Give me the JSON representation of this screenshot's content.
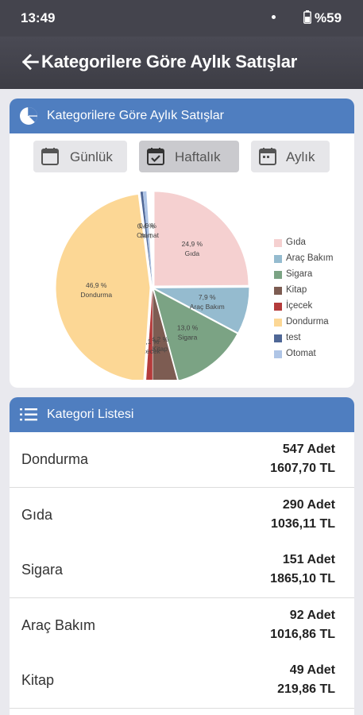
{
  "status": {
    "time": "13:49",
    "battery": "%59"
  },
  "appbar": {
    "title": "Kategorilere Göre Aylık Satışlar"
  },
  "chart_card": {
    "title": "Kategorilere Göre Aylık Satışlar"
  },
  "period_tabs": [
    {
      "label": "Günlük",
      "active": false
    },
    {
      "label": "Haftalık",
      "active": true
    },
    {
      "label": "Aylık",
      "active": false
    }
  ],
  "chart_data": {
    "type": "pie",
    "slices": [
      {
        "name": "Gıda",
        "percent": 24.9,
        "label": "24,9 %",
        "color": "#f5d0d0"
      },
      {
        "name": "Araç Bakım",
        "percent": 7.9,
        "label": "7,9 %",
        "color": "#95bbcf"
      },
      {
        "name": "Sigara",
        "percent": 13.0,
        "label": "13,0 %",
        "color": "#7ba384"
      },
      {
        "name": "Kitap",
        "percent": 4.2,
        "label": "4,2 %",
        "color": "#7d5c52"
      },
      {
        "name": "İçecek",
        "percent": 1.1,
        "label": "1,1 %",
        "color": "#b43b3b"
      },
      {
        "name": "Dondurma",
        "percent": 46.9,
        "label": "46,9 %",
        "color": "#fcd795"
      },
      {
        "name": "test",
        "percent": 0.4,
        "label": "0,4 %",
        "color": "#4f6796"
      },
      {
        "name": "Otomat",
        "percent": 0.6,
        "label": "0,6 %",
        "color": "#afc5e6"
      }
    ],
    "legend_position": "right"
  },
  "list_card": {
    "title": "Kategori Listesi"
  },
  "categories": [
    {
      "name": "Dondurma",
      "qty": "547 Adet",
      "amount": "1607,70 TL"
    },
    {
      "name": "Gıda",
      "qty": "290 Adet",
      "amount": "1036,11 TL"
    },
    {
      "name": "Sigara",
      "qty": "151 Adet",
      "amount": "1865,10 TL"
    },
    {
      "name": "Araç Bakım",
      "qty": "92 Adet",
      "amount": "1016,86 TL"
    },
    {
      "name": "Kitap",
      "qty": "49 Adet",
      "amount": "219,86 TL"
    }
  ]
}
